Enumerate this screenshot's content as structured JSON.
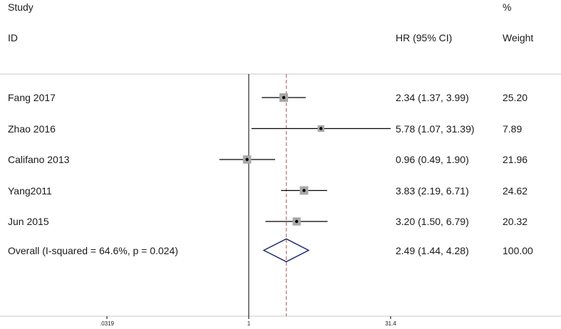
{
  "header": {
    "study": "Study",
    "id": "ID",
    "effect": "HR (95% CI)",
    "pct": "%",
    "weight": "Weight"
  },
  "colors": {
    "line": "#000000",
    "box": "#a8a8a8",
    "diamond": "#1c2a6e",
    "null_line": "#000000",
    "overall_line": "#b05a5a"
  },
  "chart_data": {
    "type": "forest",
    "x_scale": "log",
    "xlim": [
      0.0319,
      31.4
    ],
    "ticks": [
      {
        "value": 0.0319,
        "label": ".0319"
      },
      {
        "value": 1,
        "label": "1"
      },
      {
        "value": 31.4,
        "label": "31.4"
      }
    ],
    "null_value": 1,
    "studies": [
      {
        "label": "Fang 2017",
        "hr": 2.34,
        "lo": 1.37,
        "hi": 3.99,
        "ci_text": "2.34 (1.37, 3.99)",
        "weight": 25.2,
        "weight_text": "25.20"
      },
      {
        "label": "Zhao 2016",
        "hr": 5.78,
        "lo": 1.07,
        "hi": 31.39,
        "ci_text": "5.78 (1.07, 31.39)",
        "weight": 7.89,
        "weight_text": "7.89"
      },
      {
        "label": "Califano 2013",
        "hr": 0.96,
        "lo": 0.49,
        "hi": 1.9,
        "ci_text": "0.96 (0.49, 1.90)",
        "weight": 21.96,
        "weight_text": "21.96"
      },
      {
        "label": "Yang2011",
        "hr": 3.83,
        "lo": 2.19,
        "hi": 6.71,
        "ci_text": "3.83 (2.19, 6.71)",
        "weight": 24.62,
        "weight_text": "24.62"
      },
      {
        "label": "Jun 2015",
        "hr": 3.2,
        "lo": 1.5,
        "hi": 6.79,
        "ci_text": "3.20 (1.50, 6.79)",
        "weight": 20.32,
        "weight_text": "20.32"
      }
    ],
    "overall": {
      "label": "Overall  (I-squared = 64.6%, p = 0.024)",
      "hr": 2.49,
      "lo": 1.44,
      "hi": 4.28,
      "ci_text": "2.49 (1.44, 4.28)",
      "weight_text": "100.00"
    }
  }
}
